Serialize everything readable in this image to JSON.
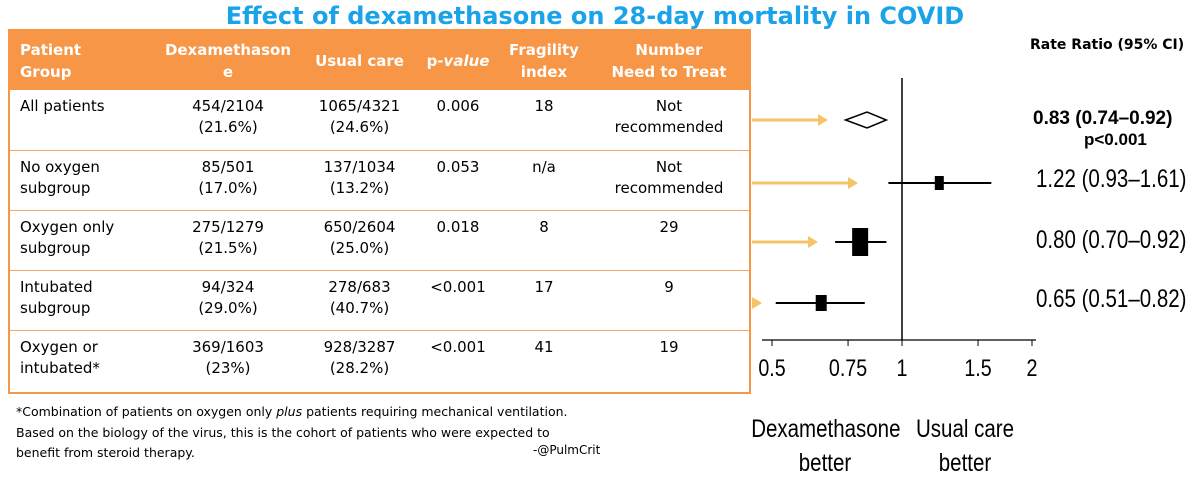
{
  "title": "Effect of dexamethasone on 28-day mortality in COVID",
  "table": {
    "headers": [
      "Patient Group",
      "Dexamethasone",
      "Usual care",
      "p-value",
      "Fragility index",
      "Number Need to Treat"
    ],
    "header_display": {
      "group": [
        "Patient",
        "Group"
      ],
      "dex": [
        "Dexamethason",
        "e"
      ],
      "usual": [
        "Usual care"
      ],
      "p_prefix": "p",
      "p_suffix": "-value",
      "frag": [
        "Fragility",
        "index"
      ],
      "nnt": [
        "Number",
        "Need to Treat"
      ]
    },
    "rows": [
      {
        "group": [
          "All patients",
          ""
        ],
        "dex": [
          "454/2104",
          "(21.6%)"
        ],
        "usual": [
          "1065/4321",
          "(24.6%)"
        ],
        "p": "0.006",
        "frag": "18",
        "nnt": [
          "Not",
          "recommended"
        ]
      },
      {
        "group": [
          "No oxygen",
          "subgroup"
        ],
        "dex": [
          "85/501",
          "(17.0%)"
        ],
        "usual": [
          "137/1034",
          "(13.2%)"
        ],
        "p": "0.053",
        "frag": "n/a",
        "nnt": [
          "Not",
          "recommended"
        ]
      },
      {
        "group": [
          "Oxygen only",
          "subgroup"
        ],
        "dex": [
          "275/1279",
          "(21.5%)"
        ],
        "usual": [
          "650/2604",
          "(25.0%)"
        ],
        "p": "0.018",
        "frag": "8",
        "nnt": [
          "29",
          ""
        ]
      },
      {
        "group": [
          "Intubated",
          "subgroup"
        ],
        "dex": [
          "94/324",
          "(29.0%)"
        ],
        "usual": [
          "278/683",
          "(40.7%)"
        ],
        "p": "<0.001",
        "frag": "17",
        "nnt": [
          "9",
          ""
        ]
      },
      {
        "group": [
          "Oxygen or",
          "intubated*"
        ],
        "dex": [
          "369/1603",
          "(23%)"
        ],
        "usual": [
          "928/3287",
          "(28.2%)"
        ],
        "p": "<0.001",
        "frag": "41",
        "nnt": [
          "19",
          ""
        ]
      }
    ]
  },
  "footnote": {
    "line1_pre": "*Combination of patients on oxygen only ",
    "line1_em": "plus",
    "line1_post": " patients requiring mechanical ventilation.",
    "line2": "Based on the biology of the virus, this is the cohort of patients who were expected to",
    "line3": "benefit from steroid therapy.",
    "handle": "-@PulmCrit"
  },
  "colors": {
    "title": "#1aa3e8",
    "table_accent": "#f79646",
    "arrow": "#f5c468"
  },
  "chart_data": {
    "type": "forest",
    "title": "Rate Ratio (95% CI)",
    "scale": "log",
    "xlim": [
      0.45,
      2.0
    ],
    "reference": 1,
    "ticks": [
      0.5,
      0.75,
      1,
      1.5,
      2
    ],
    "tick_labels": [
      "0.5",
      "0.75",
      "1",
      "1.5",
      "2"
    ],
    "xlabel_left": [
      "Dexamethasone",
      "better"
    ],
    "xlabel_right": [
      "Usual care",
      "better"
    ],
    "rows": [
      {
        "label": "0.83 (0.74–0.92)",
        "estimate": 0.83,
        "lower": 0.74,
        "upper": 0.92,
        "marker": "diamond",
        "bold": true
      },
      {
        "label": "1.22 (0.93–1.61)",
        "estimate": 1.22,
        "lower": 0.93,
        "upper": 1.61,
        "marker": "square",
        "size": "small"
      },
      {
        "label": "0.80 (0.70–0.92)",
        "estimate": 0.8,
        "lower": 0.7,
        "upper": 0.92,
        "marker": "square",
        "size": "large"
      },
      {
        "label": "0.65 (0.51–0.82)",
        "estimate": 0.65,
        "lower": 0.51,
        "upper": 0.82,
        "marker": "square",
        "size": "medium"
      }
    ],
    "overall_p": "p<0.001"
  }
}
